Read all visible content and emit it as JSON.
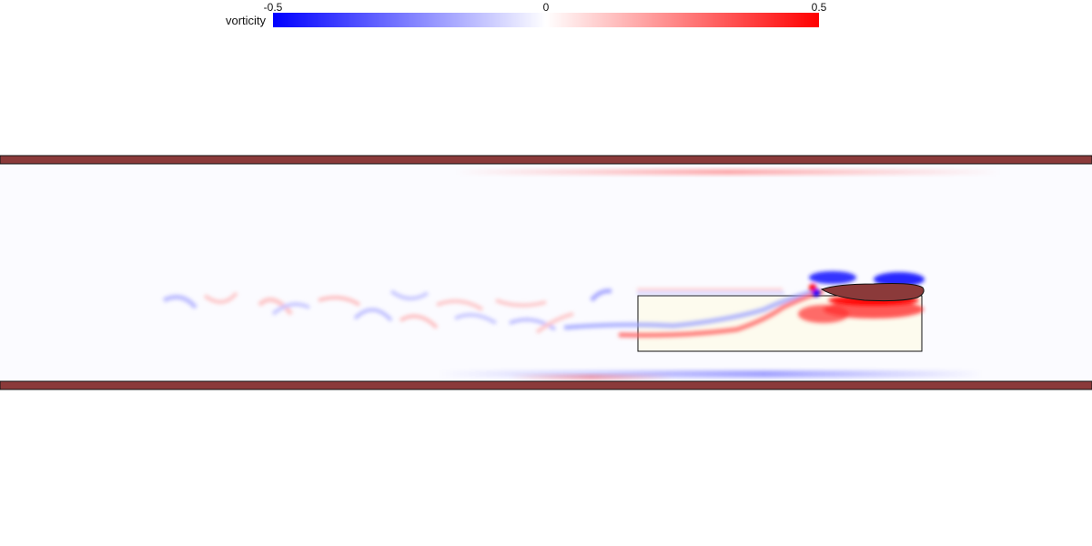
{
  "colorbar": {
    "label": "vorticity",
    "min_label": "-0.5",
    "mid_label": "0",
    "max_label": "0.5",
    "min_color": "#0000ff",
    "mid_color": "#ffffff",
    "max_color": "#ff0000"
  },
  "scene": {
    "wall_color": "#8b3a3a",
    "foil_color": "#8b3a3a",
    "highlight_box_fill": "#fdfbee"
  }
}
